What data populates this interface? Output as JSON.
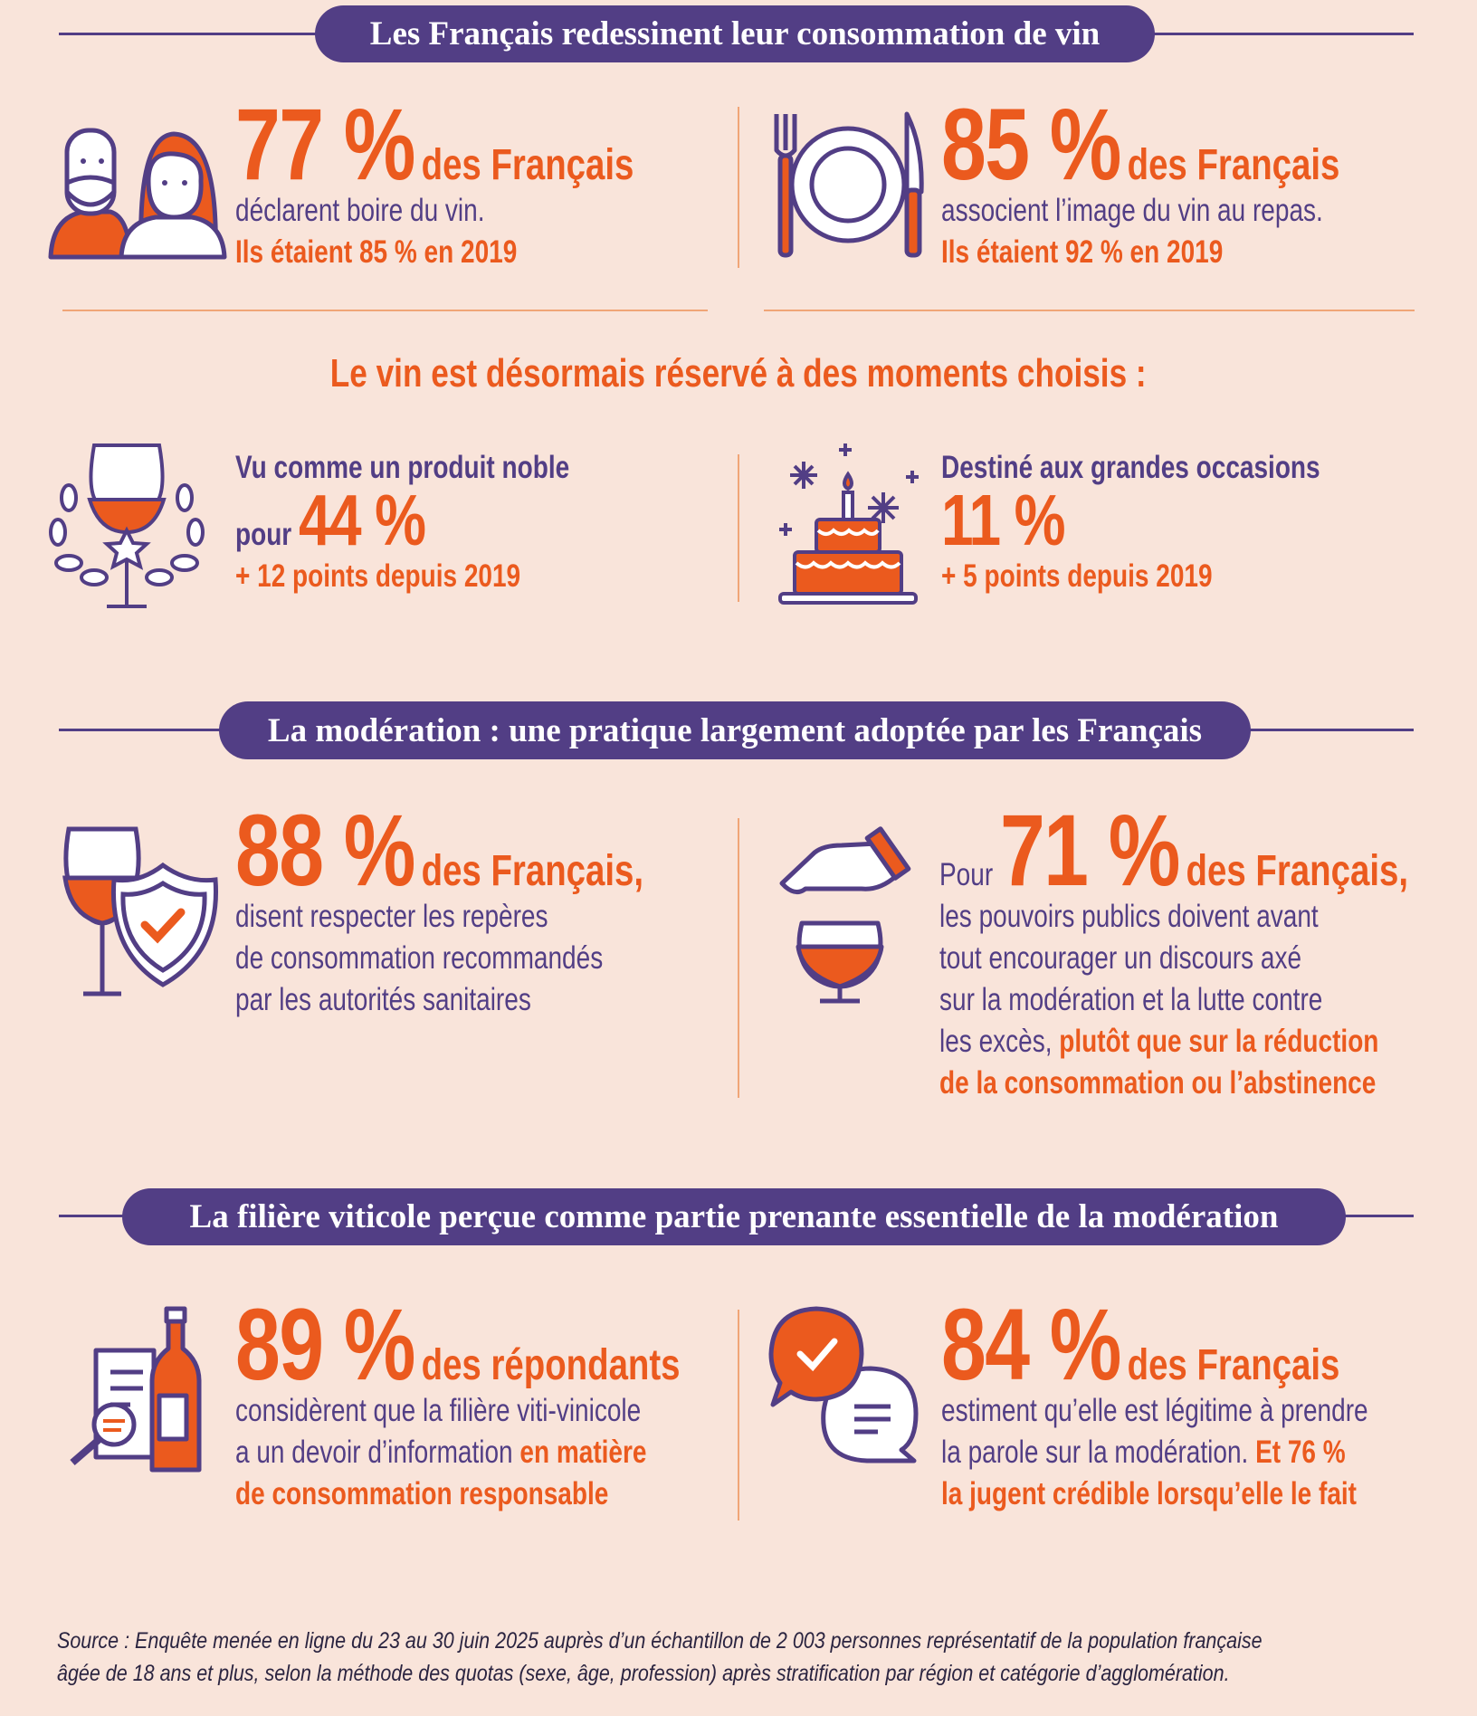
{
  "section1": {
    "header": "Les Français redessinent leur consommation de vin",
    "left": {
      "stat": "77 %",
      "subject": "des Français",
      "line1": "déclarent boire du vin.",
      "line2": "Ils étaient 85 % en 2019"
    },
    "right": {
      "stat": "85 %",
      "subject": "des Français",
      "line1": "associent l’image du vin au repas.",
      "line2": "Ils étaient 92 % en 2019"
    }
  },
  "section2": {
    "title": "Le vin est désormais réservé à des moments choisis :",
    "left": {
      "line1": "Vu comme un produit noble",
      "prefix": "pour",
      "stat": "44 %",
      "change": "+ 12 points depuis 2019"
    },
    "right": {
      "line1": "Destiné aux grandes occasions",
      "stat": "11 %",
      "change": "+ 5 points depuis 2019"
    }
  },
  "section3": {
    "header": "La modération : une pratique largement adoptée par les Français",
    "left": {
      "stat": "88 %",
      "subject": "des Français,",
      "lines": [
        "disent respecter les repères",
        "de consommation recommandés",
        "par les autorités sanitaires"
      ]
    },
    "right": {
      "prefix": "Pour",
      "stat": "71 %",
      "subject": "des Français,",
      "lines": [
        "les pouvoirs publics doivent avant",
        "tout encourager un discours axé",
        "sur la modération et la lutte contre"
      ],
      "line4a": "les excès, ",
      "line4b": "plutôt que sur la réduction",
      "line5": "de la consommation ou l’abstinence"
    }
  },
  "section4": {
    "header": "La filière viticole perçue comme partie prenante essentielle de la modération",
    "left": {
      "stat": "89 %",
      "subject": "des répondants",
      "line1": "considèrent que la filière viti-vinicole",
      "line2a": "a un devoir d’information ",
      "line2b": "en matière",
      "line3": "de consommation responsable"
    },
    "right": {
      "stat": "84 %",
      "subject": "des Français",
      "line1": "estiment qu’elle est légitime à prendre",
      "line2a": "la parole sur la modération. ",
      "line2b": "Et 76 %",
      "line3": "la jugent crédible lorsqu’elle le fait"
    }
  },
  "source": {
    "line1": "Source : Enquête menée en ligne du 23 au 30 juin 2025 auprès d’un échantillon de 2 003 personnes représentatif de la population française",
    "line2": "âgée de 18 ans et plus, selon la méthode des quotas (sexe, âge, profession) après stratification par région et catégorie d’agglomération."
  },
  "colors": {
    "background": "#f9e4da",
    "purple": "#523e85",
    "orange": "#eb5a1e",
    "divider": "#f0a577"
  }
}
